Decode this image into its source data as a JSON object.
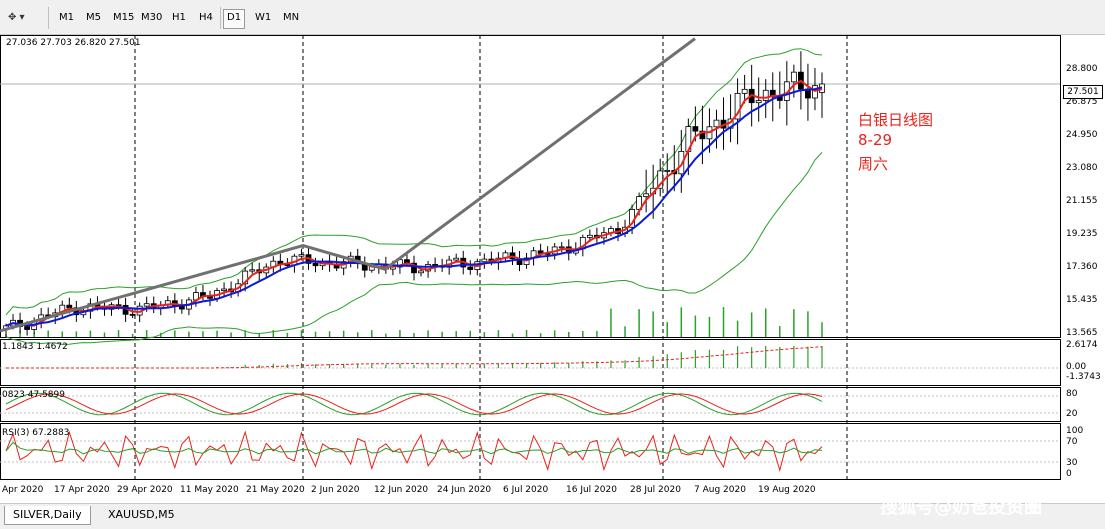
{
  "toolbar": {
    "tools_icon": "line-tools-icon",
    "timeframes": [
      {
        "label": "M1",
        "active": false
      },
      {
        "label": "M5",
        "active": false
      },
      {
        "label": "M15",
        "active": false
      },
      {
        "label": "M30",
        "active": false
      },
      {
        "label": "H1",
        "active": false
      },
      {
        "label": "H4",
        "active": false
      },
      {
        "label": "D1",
        "active": true
      },
      {
        "label": "W1",
        "active": false
      },
      {
        "label": "MN",
        "active": false
      }
    ]
  },
  "chart": {
    "ohlc_text": "27.036 27.703 26.820 27.501",
    "current_price": "27.501",
    "price_ticks": [
      "28.800",
      "26.875",
      "24.950",
      "23.080",
      "21.155",
      "19.235",
      "17.360",
      "15.435",
      "13.565"
    ],
    "date_ticks": [
      "Apr 2020",
      "17 Apr 2020",
      "29 Apr 2020",
      "11 May 2020",
      "21 May 2020",
      "2 Jun 2020",
      "12 Jun 2020",
      "24 Jun 2020",
      "6 Jul 2020",
      "16 Jul 2020",
      "28 Jul 2020",
      "7 Aug 2020",
      "19 Aug 2020"
    ],
    "annotation_lines": [
      "白银日线图",
      "8-29",
      "周六"
    ],
    "colors": {
      "bull_candle": "#ffffff",
      "bear_candle": "#000000",
      "ma_fast": "#e8231b",
      "ma_slow": "#0a1ad8",
      "bands": "#2aa12a",
      "volume": "#2aa12a",
      "trendline": "#707070",
      "annotation": "#e8231b"
    }
  },
  "indicators": {
    "macd": {
      "label": "1.1843 1.4672",
      "ticks": [
        "2.6174",
        "0.00",
        "-1.3743"
      ]
    },
    "stoch": {
      "label": "0823 47.5899",
      "ticks": [
        "80",
        "20"
      ]
    },
    "rsi": {
      "label": "RSI(3) 67.2883",
      "ticks": [
        "100",
        "70",
        "30",
        "0"
      ]
    }
  },
  "tabs": [
    {
      "label": "SILVER,Daily",
      "active": true
    },
    {
      "label": "XAUUSD,M5",
      "active": false
    }
  ],
  "watermark": "搜狐号@奶爸投资圈",
  "chart_data": {
    "type": "candlestick",
    "instrument": "SILVER,Daily",
    "x": [
      "Apr 2020",
      "17 Apr 2020",
      "29 Apr 2020",
      "11 May 2020",
      "21 May 2020",
      "2 Jun 2020",
      "12 Jun 2020",
      "24 Jun 2020",
      "6 Jul 2020",
      "16 Jul 2020",
      "28 Jul 2020",
      "7 Aug 2020",
      "19 Aug 2020"
    ],
    "close": [
      14.0,
      15.2,
      15.1,
      15.8,
      17.8,
      17.6,
      17.4,
      17.7,
      18.2,
      19.5,
      24.2,
      26.9,
      27.5
    ],
    "last": {
      "open": 27.036,
      "high": 27.703,
      "low": 26.82,
      "close": 27.501
    },
    "ylim": [
      13.565,
      30.2
    ]
  }
}
